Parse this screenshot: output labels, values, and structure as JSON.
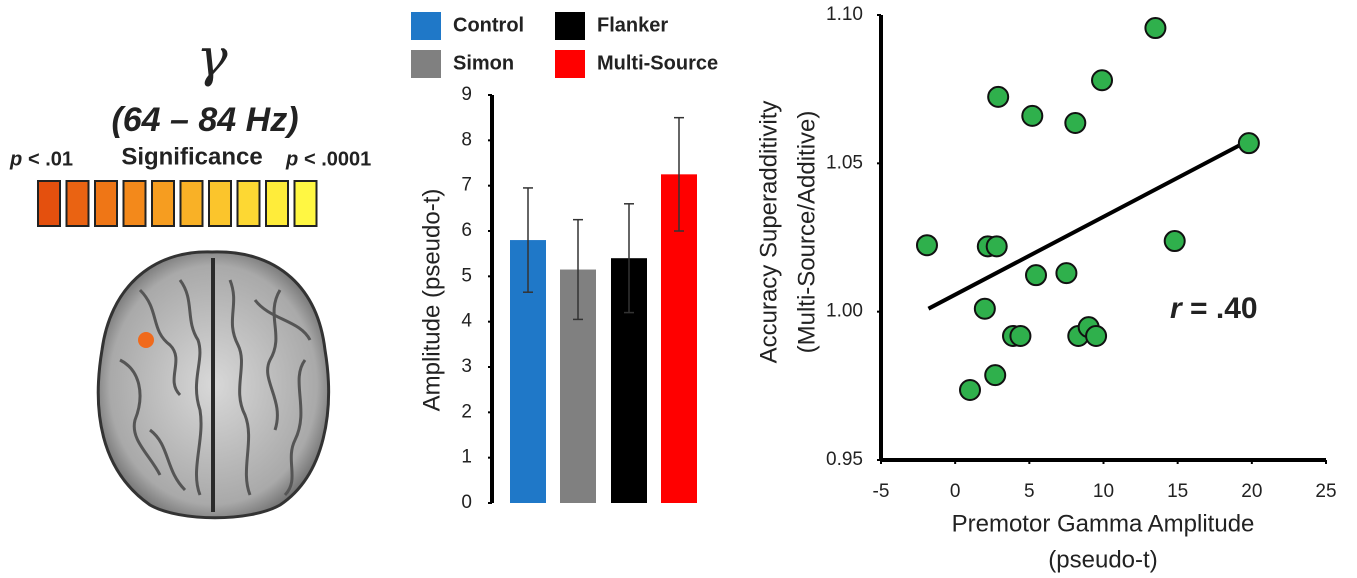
{
  "brain_panel": {
    "symbol": "γ",
    "band": "(64 – 84 Hz)",
    "low": {
      "p": "p",
      "text": "< .01"
    },
    "scale_title": "Significance",
    "high": {
      "p": "p",
      "text": "< .0001"
    },
    "scale_colors": [
      "#e4500e",
      "#ea6312",
      "#ef7616",
      "#f3891b",
      "#f69d20",
      "#f9b126",
      "#fbc52c",
      "#fdd833",
      "#ffec3a",
      "#fff743"
    ],
    "spot_color": "#f06a1c"
  },
  "chart_data": [
    {
      "type": "bar",
      "categories": [
        "Control",
        "Simon",
        "Flanker",
        "Multi-Source"
      ],
      "values": [
        5.8,
        5.15,
        5.4,
        7.25
      ],
      "errors": [
        1.15,
        1.1,
        1.2,
        1.25
      ],
      "colors": [
        "#1f78c8",
        "#808080",
        "#000000",
        "#ff0000"
      ],
      "ylabel": "Amplitude (pseudo-t)",
      "ylim": [
        0,
        9
      ],
      "yticks": [
        0,
        1,
        2,
        3,
        4,
        5,
        6,
        7,
        8,
        9
      ]
    },
    {
      "type": "scatter",
      "x": [
        13.5,
        9.9,
        2.9,
        5.2,
        8.1,
        19.8,
        -1.9,
        2.2,
        2.8,
        14.8,
        5.45,
        7.5,
        2.0,
        3.9,
        4.4,
        8.3,
        9.0,
        9.5,
        2.7,
        1.0
      ],
      "y": [
        1.0956,
        1.078,
        1.0724,
        1.066,
        1.0636,
        1.0568,
        1.0224,
        1.022,
        1.022,
        1.0238,
        1.0123,
        1.013,
        1.001,
        0.9918,
        0.9918,
        0.9918,
        0.9948,
        0.9918,
        0.9786,
        0.9736
      ],
      "color": "#2fb04c",
      "trendline": {
        "x": [
          -1.8,
          19.9
        ],
        "y": [
          1.001,
          1.058
        ]
      },
      "xlabel": [
        "Premotor Gamma Amplitude",
        "(pseudo-t)"
      ],
      "ylabel": [
        "Accuracy Superadditivity",
        "(Multi-Source/Additive)"
      ],
      "annotation": {
        "symbol": "r",
        "text": "= .40"
      },
      "xlim": [
        -5,
        25
      ],
      "xticks": [
        -5,
        0,
        5,
        10,
        15,
        20,
        25
      ],
      "ylim": [
        0.95,
        1.1
      ],
      "yticks": [
        {
          "value": 0.95,
          "label": "0.95"
        },
        {
          "value": 1.0,
          "label": "1.00"
        },
        {
          "value": 1.05,
          "label": "1.05"
        },
        {
          "value": 1.1,
          "label": "1.10"
        }
      ]
    }
  ]
}
